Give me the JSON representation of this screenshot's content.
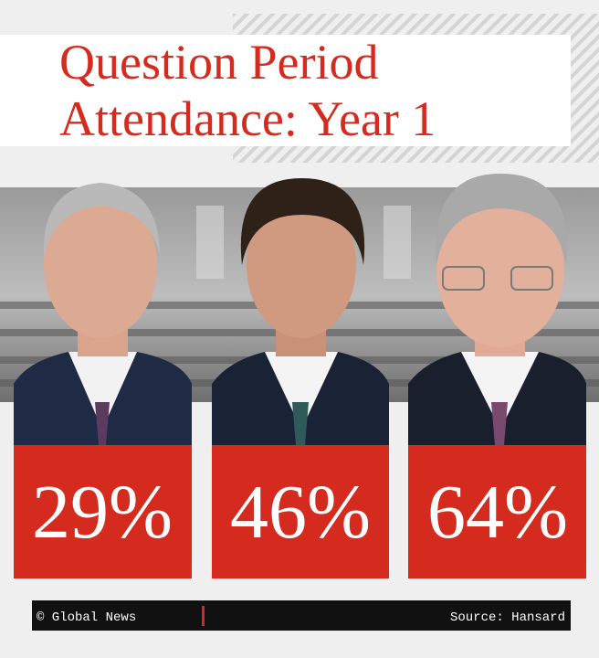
{
  "title": {
    "lines": [
      "Question Period",
      "Attendance: Year 1"
    ]
  },
  "panels": [
    {
      "value": "29%"
    },
    {
      "value": "46%"
    },
    {
      "value": "64%"
    }
  ],
  "footer": {
    "credit": "© Global News",
    "source": "Source: Hansard"
  }
}
